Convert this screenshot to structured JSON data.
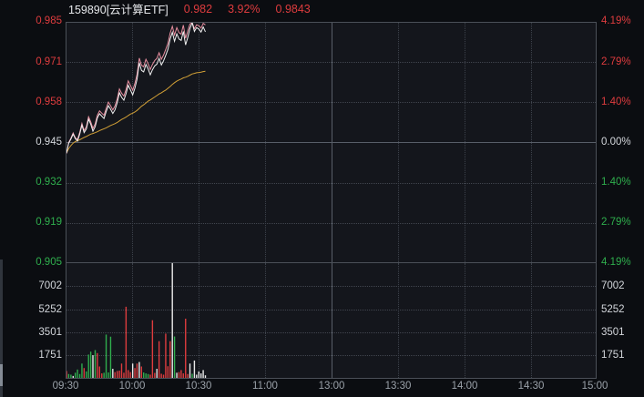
{
  "header": {
    "code_name": "159890[云计算ETF]",
    "last_price": "0.982",
    "change_percent": "3.92%",
    "iopv": "0.9843"
  },
  "axes": {
    "price_left": [
      "0.985",
      "0.971",
      "0.958",
      "0.945",
      "0.932",
      "0.919",
      "0.905"
    ],
    "percent_right": [
      "4.19%",
      "2.79%",
      "1.40%",
      "0.00%",
      "1.40%",
      "2.79%",
      "4.19%"
    ],
    "volume_left": [
      "7002",
      "5252",
      "3501",
      "1751"
    ],
    "volume_right": [
      "7002",
      "5252",
      "3501",
      "1751"
    ],
    "time": [
      "09:30",
      "10:00",
      "10:30",
      "11:00",
      "13:00",
      "13:30",
      "14:00",
      "14:30",
      "15:00"
    ]
  },
  "colors": {
    "background": "#0b0d11",
    "panel_bg": "#14161c",
    "up_red": "#de3c3e",
    "down_green": "#2fae4d",
    "neutral_text": "#d3d6db",
    "time_text": "#9aa1a9",
    "grid_solid": "#4b5058",
    "grid_dotted": "#41454e",
    "price_line": "#f2f2f2",
    "iopv_line": "#e98fa0",
    "avg_line": "#d2a036",
    "volume": {
      "r": "#de3c3e",
      "g": "#2fae4d",
      "w": "#eaeaea"
    }
  },
  "chart_data": {
    "type": "line+bar",
    "title": "159890[云计算ETF] intraday price/volume",
    "session_minutes": 240,
    "minutes_elapsed": 63,
    "prev_close": 0.945,
    "ylim_price": [
      0.905,
      0.985
    ],
    "ylim_percent": [
      -4.19,
      4.19
    ],
    "ylim_volume": [
      0,
      8873
    ],
    "xticklabels": [
      "09:30",
      "10:00",
      "10:30",
      "11:00",
      "13:00",
      "13:30",
      "14:00",
      "14:30",
      "15:00"
    ],
    "yticks_price": [
      0.985,
      0.971,
      0.958,
      0.945,
      0.932,
      0.919,
      0.905
    ],
    "yticks_percent": [
      4.19,
      2.79,
      1.4,
      0.0,
      -1.4,
      -2.79,
      -4.19
    ],
    "yticks_volume": [
      7002,
      5252,
      3501,
      1751
    ],
    "legend_position": "none",
    "grid": true,
    "series": [
      {
        "name": "avg_price",
        "color": "#d2a036",
        "values": [
          0.9415,
          0.943,
          0.944,
          0.9448,
          0.9453,
          0.9456,
          0.9459,
          0.9463,
          0.9467,
          0.947,
          0.9474,
          0.9478,
          0.948,
          0.9483,
          0.9486,
          0.949,
          0.9493,
          0.9496,
          0.9499,
          0.9503,
          0.9507,
          0.951,
          0.9513,
          0.9517,
          0.9522,
          0.9527,
          0.9531,
          0.9535,
          0.954,
          0.9545,
          0.9548,
          0.9552,
          0.9557,
          0.9564,
          0.9571,
          0.9576,
          0.9582,
          0.9588,
          0.9592,
          0.9597,
          0.9602,
          0.9607,
          0.9612,
          0.9616,
          0.9621,
          0.9625,
          0.9631,
          0.9637,
          0.9644,
          0.965,
          0.9655,
          0.9659,
          0.9662,
          0.9666,
          0.9668,
          0.9671,
          0.9675,
          0.9679,
          0.9681,
          0.9683,
          0.9684,
          0.9685,
          0.9687,
          0.9688
        ]
      },
      {
        "name": "iopv",
        "color": "#e98fa0",
        "values": [
          0.9413,
          0.945,
          0.9465,
          0.9482,
          0.9466,
          0.946,
          0.9484,
          0.9514,
          0.949,
          0.9503,
          0.9536,
          0.9519,
          0.9497,
          0.9512,
          0.9541,
          0.9556,
          0.9548,
          0.9541,
          0.9564,
          0.9585,
          0.9573,
          0.9559,
          0.9572,
          0.9596,
          0.9629,
          0.9615,
          0.9605,
          0.9627,
          0.9656,
          0.9641,
          0.9625,
          0.9647,
          0.9677,
          0.9732,
          0.9708,
          0.9703,
          0.9728,
          0.9713,
          0.9694,
          0.9711,
          0.9724,
          0.9731,
          0.975,
          0.9728,
          0.9742,
          0.9761,
          0.9781,
          0.9816,
          0.9838,
          0.9809,
          0.9834,
          0.9817,
          0.9812,
          0.9842,
          0.9798,
          0.9823,
          0.9846,
          0.9851,
          0.983,
          0.9843,
          0.984,
          0.9832,
          0.9848,
          0.9843
        ]
      },
      {
        "name": "price",
        "color": "#f2f2f2",
        "values": [
          0.9415,
          0.9448,
          0.9462,
          0.9478,
          0.9463,
          0.9455,
          0.9478,
          0.9508,
          0.9483,
          0.9495,
          0.9528,
          0.9511,
          0.9488,
          0.9503,
          0.9532,
          0.9546,
          0.9538,
          0.953,
          0.9553,
          0.9573,
          0.9561,
          0.9547,
          0.9559,
          0.9583,
          0.9616,
          0.9601,
          0.9591,
          0.9613,
          0.9641,
          0.9626,
          0.9609,
          0.9631,
          0.9661,
          0.9716,
          0.9691,
          0.9686,
          0.9711,
          0.9696,
          0.9676,
          0.9693,
          0.9706,
          0.9712,
          0.9731,
          0.9709,
          0.9723,
          0.9741,
          0.9761,
          0.9796,
          0.9818,
          0.9788,
          0.9813,
          0.9796,
          0.9791,
          0.9821,
          0.9776,
          0.9801,
          0.9831,
          0.985,
          0.9821,
          0.9834,
          0.9829,
          0.9819,
          0.9836,
          0.982
        ]
      }
    ],
    "volume": {
      "values": [
        530,
        300,
        250,
        150,
        400,
        645,
        300,
        1110,
        760,
        500,
        1800,
        2030,
        1750,
        2150,
        1920,
        880,
        350,
        400,
        3350,
        420,
        3190,
        700,
        450,
        530,
        560,
        1110,
        400,
        5500,
        600,
        450,
        1110,
        760,
        1110,
        1230,
        880,
        420,
        350,
        300,
        250,
        4460,
        380,
        700,
        2840,
        320,
        250,
        3420,
        900,
        2840,
        8870,
        3200,
        400,
        450,
        600,
        350,
        4575,
        300,
        1110,
        320,
        1340,
        250,
        500,
        350,
        600,
        200
      ],
      "colors": [
        "r",
        "g",
        "g",
        "w",
        "g",
        "g",
        "g",
        "g",
        "r",
        "g",
        "g",
        "g",
        "w",
        "g",
        "r",
        "r",
        "r",
        "g",
        "g",
        "g",
        "g",
        "w",
        "r",
        "r",
        "r",
        "r",
        "r",
        "r",
        "r",
        "r",
        "w",
        "r",
        "r",
        "w",
        "r",
        "g",
        "g",
        "g",
        "r",
        "r",
        "r",
        "w",
        "r",
        "r",
        "r",
        "r",
        "r",
        "r",
        "w",
        "g",
        "w",
        "r",
        "r",
        "r",
        "r",
        "r",
        "w",
        "g",
        "w",
        "w",
        "w",
        "w",
        "w",
        "w"
      ]
    }
  }
}
